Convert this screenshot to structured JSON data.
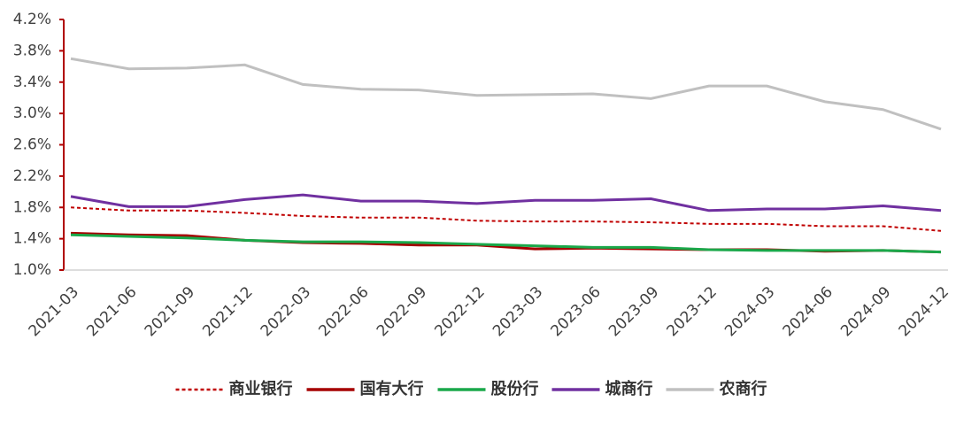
{
  "chart_data": {
    "type": "line",
    "categories": [
      "2021-03",
      "2021-06",
      "2021-09",
      "2021-12",
      "2022-03",
      "2022-06",
      "2022-09",
      "2022-12",
      "2023-03",
      "2023-06",
      "2023-09",
      "2023-12",
      "2024-03",
      "2024-06",
      "2024-09",
      "2024-12"
    ],
    "series": [
      {
        "name": "商业银行",
        "color": "#c00000",
        "dashed": true,
        "values": [
          1.8,
          1.76,
          1.76,
          1.73,
          1.69,
          1.67,
          1.67,
          1.63,
          1.62,
          1.62,
          1.61,
          1.59,
          1.59,
          1.56,
          1.56,
          1.5
        ]
      },
      {
        "name": "国有大行",
        "color": "#a50000",
        "values": [
          1.47,
          1.45,
          1.44,
          1.38,
          1.35,
          1.34,
          1.32,
          1.32,
          1.27,
          1.28,
          1.27,
          1.26,
          1.26,
          1.24,
          1.25,
          1.23
        ]
      },
      {
        "name": "股份行",
        "color": "#1aa84a",
        "values": [
          1.45,
          1.43,
          1.41,
          1.38,
          1.36,
          1.36,
          1.35,
          1.33,
          1.31,
          1.29,
          1.29,
          1.26,
          1.25,
          1.25,
          1.25,
          1.23
        ]
      },
      {
        "name": "城商行",
        "color": "#7030a0",
        "values": [
          1.94,
          1.81,
          1.81,
          1.9,
          1.96,
          1.88,
          1.88,
          1.85,
          1.89,
          1.89,
          1.91,
          1.76,
          1.78,
          1.78,
          1.82,
          1.76
        ]
      },
      {
        "name": "农商行",
        "color": "#c0c0c0",
        "values": [
          3.7,
          3.57,
          3.58,
          3.62,
          3.37,
          3.31,
          3.3,
          3.23,
          3.24,
          3.25,
          3.19,
          3.35,
          3.35,
          3.15,
          3.05,
          2.8
        ]
      }
    ],
    "ylim": [
      1.0,
      4.2
    ],
    "yticks": [
      {
        "value": 1.0,
        "label": "1.0%"
      },
      {
        "value": 1.4,
        "label": "1.4%"
      },
      {
        "value": 1.8,
        "label": "1.8%"
      },
      {
        "value": 2.2,
        "label": "2.2%"
      },
      {
        "value": 2.6,
        "label": "2.6%"
      },
      {
        "value": 3.0,
        "label": "3.0%"
      },
      {
        "value": 3.4,
        "label": "3.4%"
      },
      {
        "value": 3.8,
        "label": "3.8%"
      },
      {
        "value": 4.2,
        "label": "4.2%"
      }
    ],
    "axis_color": "#b00000",
    "legend": "bottom"
  }
}
